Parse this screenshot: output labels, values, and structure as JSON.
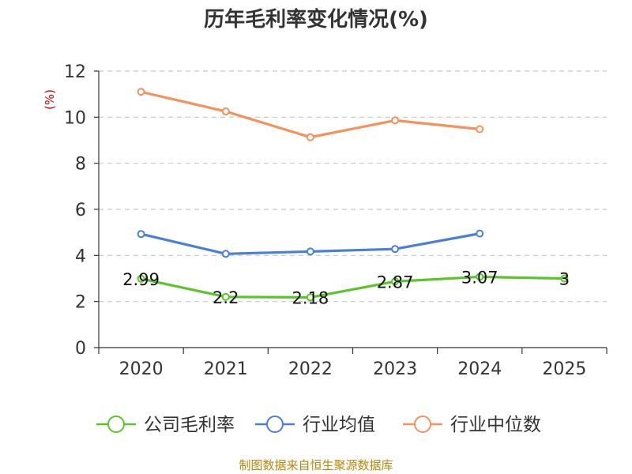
{
  "chart_data": {
    "type": "line",
    "title": "历年毛利率变化情况(%)",
    "ylabel": "(%)",
    "xlabel": "",
    "categories": [
      "2020",
      "2021",
      "2022",
      "2023",
      "2024",
      "2025"
    ],
    "ylim": [
      0,
      12
    ],
    "yticks": [
      "0",
      "2",
      "4",
      "6",
      "8",
      "10",
      "12"
    ],
    "grid": "horizontal-dashed",
    "legend_position": "bottom",
    "series": [
      {
        "name": "公司毛利率",
        "color": "#5cc42b",
        "values": [
          2.99,
          2.2,
          2.18,
          2.87,
          3.07,
          3.0
        ],
        "labels": [
          "2.99",
          "2.2",
          "2.18",
          "2.87",
          "3.07",
          "3"
        ]
      },
      {
        "name": "行业均值",
        "color": "#4a7fd9",
        "values": [
          4.93,
          4.07,
          4.17,
          4.28,
          4.95,
          null
        ]
      },
      {
        "name": "行业中位数",
        "color": "#f4915c",
        "values": [
          11.1,
          10.25,
          9.13,
          9.86,
          9.48,
          null
        ]
      }
    ],
    "source": "制图数据来自恒生聚源数据库"
  }
}
